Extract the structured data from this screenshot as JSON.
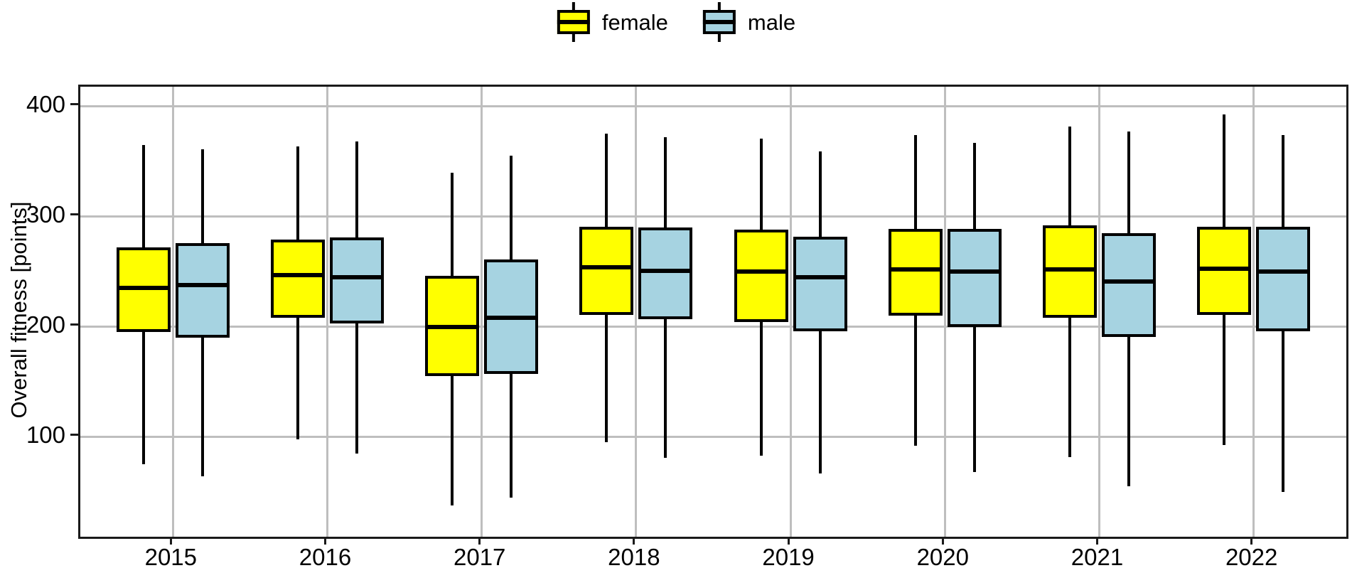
{
  "legend": {
    "items": [
      {
        "label": "female",
        "color": "#ffff00"
      },
      {
        "label": "male",
        "color": "#a6d3e1"
      }
    ]
  },
  "y_axis": {
    "title": "Overall fitness [points]",
    "tick_labels": [
      "400",
      "300",
      "200",
      "100"
    ],
    "tick_values": [
      400,
      300,
      200,
      100
    ]
  },
  "x_axis": {
    "tick_labels": [
      "2015",
      "2016",
      "2017",
      "2018",
      "2019",
      "2020",
      "2021",
      "2022"
    ]
  },
  "chart_data": {
    "type": "boxplot",
    "title": "",
    "xlabel": "",
    "ylabel": "Overall fitness [points]",
    "categories": [
      "2015",
      "2016",
      "2017",
      "2018",
      "2019",
      "2020",
      "2021",
      "2022"
    ],
    "ylim": [
      10,
      418
    ],
    "grid": true,
    "legend_position": "top-center",
    "gridline_color": "#bebebe",
    "series": [
      {
        "name": "female",
        "color": "#ffff00",
        "boxes": [
          {
            "category": "2015",
            "whisker_low": 75,
            "q1": 195,
            "median": 235,
            "q3": 272,
            "whisker_high": 365
          },
          {
            "category": "2016",
            "whisker_low": 98,
            "q1": 208,
            "median": 247,
            "q3": 279,
            "whisker_high": 364
          },
          {
            "category": "2017",
            "whisker_low": 38,
            "q1": 155,
            "median": 200,
            "q3": 246,
            "whisker_high": 340
          },
          {
            "category": "2018",
            "whisker_low": 95,
            "q1": 211,
            "median": 254,
            "q3": 291,
            "whisker_high": 375
          },
          {
            "category": "2019",
            "whisker_low": 83,
            "q1": 204,
            "median": 250,
            "q3": 288,
            "whisker_high": 371
          },
          {
            "category": "2020",
            "whisker_low": 92,
            "q1": 210,
            "median": 252,
            "q3": 289,
            "whisker_high": 374
          },
          {
            "category": "2021",
            "whisker_low": 82,
            "q1": 208,
            "median": 252,
            "q3": 292,
            "whisker_high": 382
          },
          {
            "category": "2022",
            "whisker_low": 93,
            "q1": 211,
            "median": 253,
            "q3": 291,
            "whisker_high": 393
          }
        ]
      },
      {
        "name": "male",
        "color": "#a6d3e1",
        "boxes": [
          {
            "category": "2015",
            "whisker_low": 64,
            "q1": 190,
            "median": 238,
            "q3": 276,
            "whisker_high": 361
          },
          {
            "category": "2016",
            "whisker_low": 85,
            "q1": 203,
            "median": 245,
            "q3": 281,
            "whisker_high": 368
          },
          {
            "category": "2017",
            "whisker_low": 45,
            "q1": 157,
            "median": 208,
            "q3": 261,
            "whisker_high": 355
          },
          {
            "category": "2018",
            "whisker_low": 81,
            "q1": 207,
            "median": 251,
            "q3": 290,
            "whisker_high": 372
          },
          {
            "category": "2019",
            "whisker_low": 67,
            "q1": 196,
            "median": 245,
            "q3": 282,
            "whisker_high": 359
          },
          {
            "category": "2020",
            "whisker_low": 68,
            "q1": 200,
            "median": 250,
            "q3": 289,
            "whisker_high": 367
          },
          {
            "category": "2021",
            "whisker_low": 55,
            "q1": 191,
            "median": 241,
            "q3": 285,
            "whisker_high": 377
          },
          {
            "category": "2022",
            "whisker_low": 50,
            "q1": 196,
            "median": 250,
            "q3": 291,
            "whisker_high": 374
          }
        ]
      }
    ]
  }
}
